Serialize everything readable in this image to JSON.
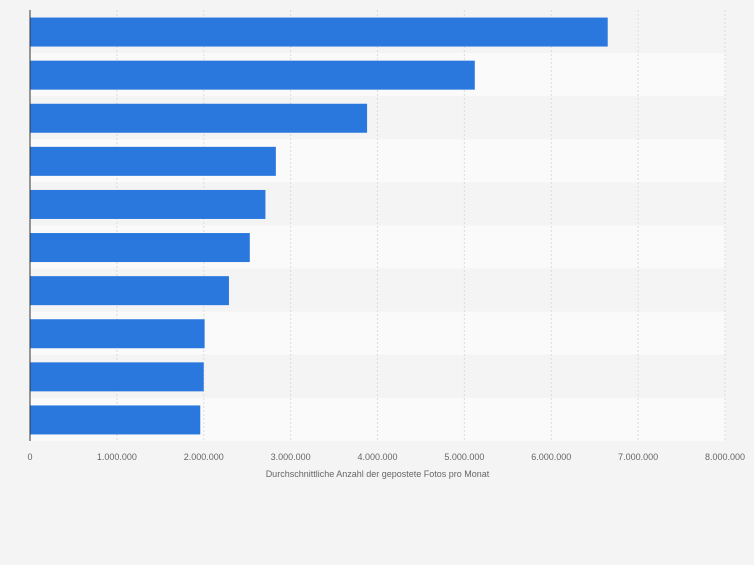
{
  "chart_data": {
    "type": "bar",
    "orientation": "horizontal",
    "categories": [
      "",
      "",
      "",
      "",
      "",
      "",
      "",
      "",
      "",
      ""
    ],
    "values": [
      6650000,
      5120000,
      3880000,
      2830000,
      2710000,
      2530000,
      2290000,
      2010000,
      2000000,
      1960000
    ],
    "title": "",
    "xlabel": "Durchschnittliche Anzahl der gepostete Fotos pro Monat",
    "ylabel": "",
    "xlim": [
      0,
      8000000
    ],
    "x_ticks": [
      0,
      1000000,
      2000000,
      3000000,
      4000000,
      5000000,
      6000000,
      7000000,
      8000000
    ],
    "x_tick_labels": [
      "0",
      "1.000.000",
      "2.000.000",
      "3.000.000",
      "4.000.000",
      "5.000.000",
      "6.000.000",
      "7.000.000",
      "8.000.000"
    ],
    "grid": "vertical",
    "bar_color": "#2a78de",
    "stripe_colors": [
      "#f4f4f4",
      "#fafafa"
    ]
  }
}
